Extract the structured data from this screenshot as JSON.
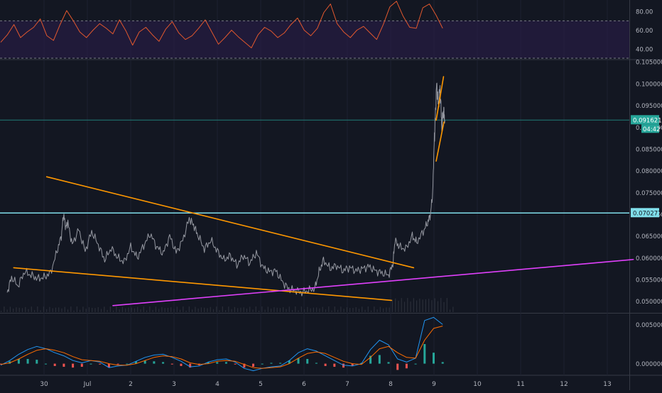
{
  "colors": {
    "background": "#131722",
    "grid": "#1e2230",
    "axis_text": "#b2b5be",
    "separator": "#363a45",
    "price_line": "#9598a1",
    "rsi_line": "#e2582e",
    "rsi_band": "#2a1d4a",
    "trendline": "#ff9800",
    "support": "#e040fb",
    "horizontal_level": "#80deea",
    "last_price": "#26a69a",
    "macd": "#2196f3",
    "signal": "#ff6d00",
    "hist_pos": "#26a69a",
    "hist_neg": "#ef5350"
  },
  "chart_data": [
    {
      "type": "line",
      "panel": "rsi",
      "ylim": [
        30,
        90
      ],
      "y_ticks": [
        "80.00",
        "60.00",
        "40.00"
      ],
      "levels": [
        70,
        30
      ],
      "series": [
        {
          "values": [
            47,
            55,
            66,
            52,
            58,
            63,
            72,
            54,
            49,
            66,
            81,
            70,
            58,
            52,
            60,
            67,
            62,
            56,
            71,
            59,
            44,
            58,
            63,
            55,
            48,
            61,
            69,
            57,
            50,
            54,
            62,
            71,
            58,
            45,
            52,
            60,
            53,
            47,
            41,
            55,
            63,
            59,
            52,
            57,
            66,
            73,
            60,
            54,
            62,
            79,
            88,
            67,
            58,
            52,
            60,
            64,
            57,
            50,
            66,
            85,
            91,
            75,
            63,
            62,
            84,
            88,
            76,
            62
          ]
        }
      ]
    },
    {
      "type": "line",
      "panel": "price",
      "ylim": [
        0.0475,
        0.1052
      ],
      "y_ticks": [
        "0.105000",
        "0.100000",
        "0.095000",
        "0.090000",
        "0.085000",
        "0.080000",
        "0.075000",
        "0.070000",
        "0.065000",
        "0.060000",
        "0.055000",
        "0.050000"
      ],
      "x_ticks": [
        "30",
        "Jul",
        "2",
        "3",
        "4",
        "5",
        "6",
        "7",
        "8",
        "9",
        "10",
        "11",
        "12",
        "13"
      ],
      "x_tick_pos": [
        0,
        1,
        2,
        3,
        4,
        5,
        6,
        7,
        8,
        9,
        10,
        11,
        12,
        13
      ],
      "price_labels": [
        "0.091621",
        "04:42",
        "0.070277"
      ],
      "levels": [
        0.070277,
        0.091621
      ],
      "series": [
        {
          "x": [
            -0.85,
            -0.75,
            -0.6,
            -0.45,
            -0.3,
            -0.15,
            0.0,
            0.15,
            0.3,
            0.4,
            0.45,
            0.5,
            0.55,
            0.65,
            0.8,
            0.95,
            1.1,
            1.25,
            1.4,
            1.55,
            1.7,
            1.85,
            2.0,
            2.15,
            2.3,
            2.45,
            2.6,
            2.75,
            2.9,
            3.05,
            3.2,
            3.35,
            3.45,
            3.55,
            3.7,
            3.85,
            4.0,
            4.15,
            4.3,
            4.45,
            4.6,
            4.75,
            4.9,
            5.05,
            5.2,
            5.35,
            5.5,
            5.65,
            5.8,
            5.95,
            6.1,
            6.25,
            6.35,
            6.45,
            6.6,
            6.75,
            6.9,
            7.05,
            7.2,
            7.35,
            7.5,
            7.65,
            7.8,
            7.95,
            8.05,
            8.1,
            8.2,
            8.35,
            8.5,
            8.6,
            8.75,
            8.85,
            8.92,
            8.97,
            9.0,
            9.03,
            9.06,
            9.1,
            9.14,
            9.18,
            9.22,
            9.25
          ],
          "values": [
            0.052,
            0.0555,
            0.0535,
            0.0568,
            0.056,
            0.0552,
            0.0555,
            0.0565,
            0.0615,
            0.065,
            0.07,
            0.067,
            0.068,
            0.063,
            0.0665,
            0.0615,
            0.066,
            0.063,
            0.0595,
            0.0622,
            0.06,
            0.059,
            0.0625,
            0.06,
            0.0628,
            0.0655,
            0.0625,
            0.061,
            0.065,
            0.0612,
            0.064,
            0.069,
            0.0675,
            0.0652,
            0.062,
            0.064,
            0.0615,
            0.0595,
            0.0605,
            0.0583,
            0.0605,
            0.0588,
            0.0612,
            0.0578,
            0.0568,
            0.057,
            0.0545,
            0.0528,
            0.0525,
            0.052,
            0.0525,
            0.053,
            0.0568,
            0.0595,
            0.0575,
            0.0582,
            0.057,
            0.0578,
            0.057,
            0.0575,
            0.058,
            0.057,
            0.0565,
            0.056,
            0.0585,
            0.064,
            0.0625,
            0.062,
            0.065,
            0.0635,
            0.066,
            0.068,
            0.07,
            0.075,
            0.085,
            0.092,
            0.1,
            0.095,
            0.099,
            0.09,
            0.094,
            0.0916
          ]
        }
      ],
      "annotations": [
        {
          "type": "trendline",
          "color": "trendline",
          "points": [
            [
              0.06,
              0.0786
            ],
            [
              8.53,
              0.0577
            ]
          ]
        },
        {
          "type": "trendline",
          "color": "trendline",
          "points": [
            [
              -0.7,
              0.0577
            ],
            [
              8.02,
              0.0502
            ]
          ]
        },
        {
          "type": "trendline",
          "color": "support",
          "points": [
            [
              1.59,
              0.049
            ],
            [
              13.6,
              0.0596
            ]
          ]
        },
        {
          "type": "trendline",
          "color": "trendline",
          "points": [
            [
              9.05,
              0.0916
            ],
            [
              9.22,
              0.1016
            ]
          ]
        },
        {
          "type": "trendline",
          "color": "trendline",
          "points": [
            [
              9.05,
              0.0822
            ],
            [
              9.23,
              0.0912
            ]
          ]
        }
      ]
    },
    {
      "type": "line",
      "panel": "macd",
      "ylim": [
        -0.0013,
        0.0063
      ],
      "y_ticks": [
        "0.005000",
        "0.000000"
      ],
      "series": [
        {
          "values": [
            -0.0002,
            0.0004,
            0.0012,
            0.0018,
            0.0022,
            0.0019,
            0.0014,
            0.001,
            0.0004,
            0.0001,
            0.0004,
            0.0002,
            -0.0005,
            -0.0003,
            -0.0002,
            0.0003,
            0.0008,
            0.0011,
            0.0012,
            0.0008,
            0.0003,
            -0.0004,
            -0.0003,
            0.0002,
            0.0005,
            0.0006,
            0.0002,
            -0.0006,
            -0.0009,
            -0.0006,
            -0.0004,
            -0.0003,
            0.0004,
            0.0014,
            0.0019,
            0.0016,
            0.001,
            0.0004,
            -0.0002,
            -0.0003,
            0.0,
            0.0018,
            0.003,
            0.0024,
            0.0006,
            0.0002,
            0.0007,
            0.0055,
            0.0059,
            0.005
          ]
        },
        {
          "values": [
            -0.0001,
            0.0001,
            0.0006,
            0.0012,
            0.0017,
            0.0019,
            0.0017,
            0.0014,
            0.0009,
            0.0005,
            0.0004,
            0.0003,
            0.0,
            -0.0002,
            -0.0002,
            0.0,
            0.0004,
            0.0008,
            0.001,
            0.0009,
            0.0006,
            0.0001,
            -0.0001,
            0.0,
            0.0003,
            0.0004,
            0.0003,
            -0.0001,
            -0.0005,
            -0.0006,
            -0.0005,
            -0.0004,
            0.0,
            0.0007,
            0.0013,
            0.0015,
            0.0013,
            0.0008,
            0.0003,
            0.0,
            -0.0001,
            0.0008,
            0.0019,
            0.0022,
            0.0014,
            0.0008,
            0.0007,
            0.003,
            0.0045,
            0.0048
          ]
        }
      ]
    }
  ]
}
